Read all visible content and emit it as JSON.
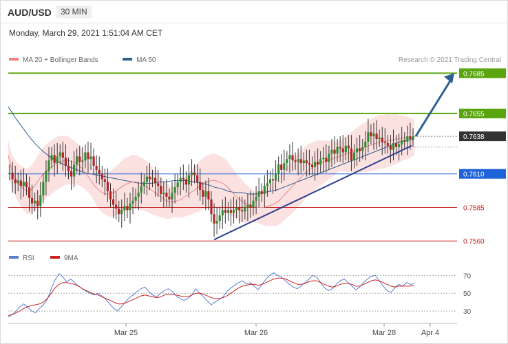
{
  "header": {
    "symbol": "AUD/USD",
    "timeframe": "30 MIN",
    "datetime": "Monday, March 29, 2021 1:51:04 AM CET"
  },
  "chart_data": [
    {
      "type": "candlestick",
      "legend": [
        {
          "name": "MA 20 + Bollinger Bands",
          "color": "#f08080"
        },
        {
          "name": "MA 50",
          "color": "#2f5f93"
        }
      ],
      "credit": "Research © 2021 Trading Central",
      "ylim": [
        0.7555,
        0.7697
      ],
      "x_ticks": [
        "Mar 25",
        "Mar 26",
        "Mar 28",
        "Apr 4"
      ],
      "levels": [
        {
          "value": 0.7685,
          "label": "0.7685",
          "color": "#5aa50f",
          "kind": "resistance"
        },
        {
          "value": 0.7655,
          "label": "0.7655",
          "color": "#5aa50f",
          "kind": "resistance"
        },
        {
          "value": 0.7638,
          "label": "0.7638",
          "color": "#333333",
          "kind": "current"
        },
        {
          "value": 0.761,
          "label": "0.7610",
          "color": "#1f63d9",
          "kind": "pivot"
        },
        {
          "value": 0.7585,
          "label": "0.7585",
          "color": "#c81e1e",
          "kind": "support"
        },
        {
          "value": 0.756,
          "label": "0.7560",
          "color": "#c81e1e",
          "kind": "support"
        }
      ],
      "closes": [
        0.7611,
        0.7606,
        0.7603,
        0.7605,
        0.7601,
        0.7604,
        0.76,
        0.7592,
        0.7588,
        0.759,
        0.7586,
        0.7594,
        0.7604,
        0.7612,
        0.762,
        0.7624,
        0.7618,
        0.7623,
        0.7626,
        0.7622,
        0.7616,
        0.7612,
        0.7608,
        0.7617,
        0.7623,
        0.7619,
        0.762,
        0.7626,
        0.7621,
        0.7623,
        0.7616,
        0.7613,
        0.761,
        0.7606,
        0.7604,
        0.7597,
        0.7591,
        0.7587,
        0.7584,
        0.758,
        0.7583,
        0.7586,
        0.7583,
        0.7588,
        0.759,
        0.7593,
        0.7596,
        0.7601,
        0.7604,
        0.7608,
        0.7606,
        0.7607,
        0.7603,
        0.7601,
        0.7595,
        0.7596,
        0.7593,
        0.7591,
        0.7596,
        0.76,
        0.7604,
        0.7607,
        0.7606,
        0.7602,
        0.7609,
        0.7611,
        0.7609,
        0.7604,
        0.7598,
        0.7593,
        0.7597,
        0.7591,
        0.758,
        0.7573,
        0.7575,
        0.7579,
        0.7583,
        0.7581,
        0.7583,
        0.7581,
        0.7583,
        0.7585,
        0.7583,
        0.7582,
        0.7585,
        0.7587,
        0.7585,
        0.759,
        0.7593,
        0.7597,
        0.7595,
        0.7601,
        0.7603,
        0.7606,
        0.7605,
        0.761,
        0.7617,
        0.7613,
        0.7618,
        0.7621,
        0.7624,
        0.762,
        0.7619,
        0.7621,
        0.7618,
        0.762,
        0.7618,
        0.7617,
        0.7615,
        0.7619,
        0.7617,
        0.7621,
        0.7622,
        0.7619,
        0.7625,
        0.7628,
        0.7625,
        0.763,
        0.7629,
        0.7626,
        0.7631,
        0.7629,
        0.762,
        0.7626,
        0.7629,
        0.7627,
        0.763,
        0.7634,
        0.7641,
        0.7638,
        0.764,
        0.7636,
        0.7637,
        0.7634,
        0.7633,
        0.7631,
        0.7628,
        0.7633,
        0.763,
        0.7632,
        0.7635,
        0.7634,
        0.7638,
        0.7636,
        0.7638
      ],
      "ma20": [
        0.7624,
        0.7612,
        0.7606,
        0.7602,
        0.7599,
        0.7597,
        0.7598,
        0.7601,
        0.7605,
        0.7609,
        0.7612,
        0.7614,
        0.7616,
        0.7618,
        0.7619,
        0.762,
        0.762,
        0.7619,
        0.7618,
        0.7616,
        0.7613,
        0.7609,
        0.7605,
        0.7601,
        0.7598,
        0.7596,
        0.7595,
        0.7595,
        0.7596,
        0.7598,
        0.76,
        0.7602,
        0.7603,
        0.7604,
        0.7604,
        0.7603,
        0.7602,
        0.76,
        0.7598,
        0.7596,
        0.7594,
        0.7592,
        0.759,
        0.7589,
        0.7589,
        0.759,
        0.7591,
        0.7593,
        0.7595,
        0.7597,
        0.7599,
        0.7601,
        0.7603,
        0.7604,
        0.7605,
        0.7605,
        0.7604,
        0.7603,
        0.7601,
        0.7598,
        0.7595,
        0.7592,
        0.759,
        0.7588,
        0.7587,
        0.7586,
        0.7585,
        0.7585,
        0.7585,
        0.7586,
        0.7587,
        0.7588,
        0.759,
        0.7593,
        0.7596,
        0.7599,
        0.7602,
        0.7605,
        0.7608,
        0.7611,
        0.7613,
        0.7615,
        0.7617,
        0.7618,
        0.7619,
        0.762,
        0.7621,
        0.7622,
        0.7623,
        0.7624,
        0.7625,
        0.7626,
        0.7627,
        0.7628,
        0.7629,
        0.763,
        0.7631,
        0.7632,
        0.7633,
        0.7634,
        0.7634,
        0.7635,
        0.7635,
        0.7636,
        0.7636,
        0.7637,
        0.7637,
        0.7637,
        0.7637
      ],
      "ma50": [
        0.766,
        0.7652,
        0.7645,
        0.7638,
        0.7632,
        0.7627,
        0.7623,
        0.762,
        0.7617,
        0.7615,
        0.7613,
        0.7611,
        0.761,
        0.7609,
        0.7608,
        0.7607,
        0.7606,
        0.7605,
        0.7604,
        0.7603,
        0.7603,
        0.7603,
        0.7604,
        0.7604,
        0.7605,
        0.7605,
        0.7605,
        0.7604,
        0.7603,
        0.7602,
        0.76,
        0.7599,
        0.7597,
        0.7596,
        0.7596,
        0.7595,
        0.7595,
        0.7596,
        0.7597,
        0.7598,
        0.76,
        0.7602,
        0.7604,
        0.7606,
        0.7608,
        0.761,
        0.7612,
        0.7614,
        0.7616,
        0.7618,
        0.762,
        0.7622,
        0.7624,
        0.7626,
        0.7628,
        0.763,
        0.7632,
        0.7634,
        0.7635,
        0.7636
      ],
      "rsi": [
        23,
        26,
        30,
        35,
        38,
        34,
        30,
        28,
        33,
        37,
        43,
        55,
        65,
        72,
        68,
        63,
        66,
        62,
        58,
        55,
        52,
        50,
        48,
        50,
        47,
        43,
        38,
        33,
        30,
        35,
        40,
        45,
        48,
        52,
        55,
        57,
        52,
        48,
        46,
        50,
        53,
        55,
        52,
        47,
        44,
        42,
        44,
        48,
        55,
        50,
        46,
        41,
        37,
        40,
        43,
        46,
        52,
        56,
        59,
        62,
        64,
        60,
        62,
        58,
        54,
        60,
        66,
        70,
        73,
        70,
        68,
        64,
        60,
        57,
        55,
        58,
        62,
        66,
        70,
        68,
        62,
        56,
        53,
        55,
        60,
        64,
        66,
        62,
        58,
        54,
        57,
        62,
        66,
        69,
        70,
        64,
        58,
        53,
        51,
        56,
        60,
        58,
        62,
        60,
        61
      ],
      "rsi_ma9": [
        25,
        26,
        28,
        30,
        33,
        35,
        36,
        37,
        38,
        40,
        44,
        50,
        56,
        60,
        62,
        62,
        61,
        60,
        58,
        55,
        53,
        51,
        49,
        48,
        46,
        44,
        42,
        40,
        38,
        38,
        39,
        41,
        43,
        45,
        47,
        48,
        47,
        46,
        45,
        46,
        48,
        49,
        49,
        48,
        47,
        46,
        46,
        48,
        50,
        50,
        49,
        47,
        45,
        44,
        44,
        45,
        47,
        50,
        53,
        56,
        58,
        59,
        60,
        60,
        59,
        60,
        62,
        64,
        66,
        67,
        67,
        66,
        64,
        62,
        60,
        60,
        61,
        63,
        64,
        64,
        62,
        60,
        58,
        57,
        58,
        60,
        61,
        61,
        60,
        58,
        58,
        60,
        62,
        64,
        65,
        64,
        62,
        60,
        58,
        57,
        58,
        58,
        58,
        58,
        59
      ],
      "rsi_legend": [
        {
          "name": "RSI",
          "color": "#5b7fce"
        },
        {
          "name": "9MA",
          "color": "#cc1f1f"
        }
      ],
      "rsi_levels": [
        70,
        50,
        30
      ],
      "rsi_ylim": [
        20,
        78
      ],
      "trendline": [
        {
          "x": 0,
          "y": 0.7561
        },
        {
          "x": 1,
          "y": 0.7631
        }
      ],
      "arrow": {
        "from": 0.7638,
        "to": 0.7685,
        "color": "#2f5f93"
      }
    }
  ]
}
